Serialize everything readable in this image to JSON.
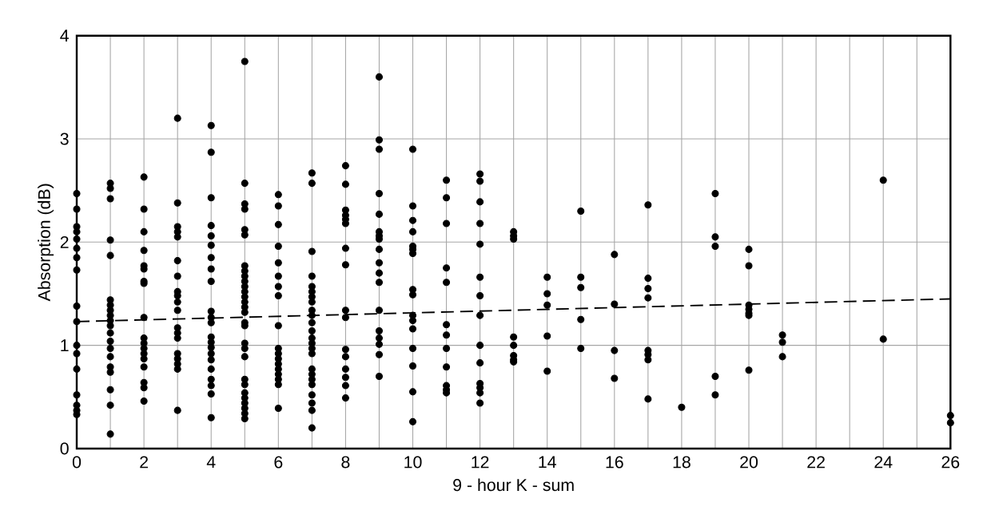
{
  "chart_data": {
    "type": "scatter",
    "xlabel": "9 - hour K - sum",
    "ylabel": "Absorption (dB)",
    "xlim": [
      0,
      26
    ],
    "ylim": [
      0,
      4
    ],
    "xticks": [
      0,
      {
        "value": 1,
        "label": null
      },
      2,
      {
        "value": 3,
        "label": null
      },
      4,
      {
        "value": 5,
        "label": null
      },
      6,
      {
        "value": 7,
        "label": null
      },
      8,
      {
        "value": 9,
        "label": null
      },
      10,
      {
        "value": 11,
        "label": null
      },
      12,
      {
        "value": 13,
        "label": null
      },
      14,
      {
        "value": 15,
        "label": null
      },
      16,
      {
        "value": 17,
        "label": null
      },
      18,
      {
        "value": 19,
        "label": null
      },
      20,
      {
        "value": 21,
        "label": null
      },
      22,
      {
        "value": 23,
        "label": null
      },
      24,
      {
        "value": 25,
        "label": null
      },
      26
    ],
    "yticks": [
      0,
      1,
      2,
      3,
      4
    ],
    "grid": true,
    "marker": "circle",
    "series": [
      {
        "color": "#000000",
        "x": [
          0,
          0,
          0,
          0,
          0,
          0,
          0,
          0,
          0,
          0,
          0,
          0,
          0,
          0,
          0,
          0,
          0
        ],
        "values": [
          2.47,
          2.32,
          2.15,
          2.1,
          2.03,
          1.94,
          1.85,
          1.73,
          1.38,
          1.23,
          1.0,
          0.92,
          0.77,
          0.52,
          0.42,
          0.37,
          0.33
        ]
      },
      {
        "color": "#000000",
        "x": [
          1,
          1,
          1,
          1,
          1,
          1,
          1,
          1,
          1,
          1,
          1,
          1,
          1,
          1,
          1,
          1,
          1,
          1,
          1,
          1
        ],
        "values": [
          2.57,
          2.52,
          2.42,
          2.02,
          1.87,
          1.44,
          1.39,
          1.34,
          1.29,
          1.24,
          1.19,
          1.12,
          1.04,
          0.97,
          0.89,
          0.79,
          0.74,
          0.57,
          0.42,
          0.14
        ]
      },
      {
        "color": "#000000",
        "x": [
          2,
          2,
          2,
          2,
          2,
          2,
          2,
          2,
          2,
          2,
          2,
          2,
          2,
          2,
          2,
          2,
          2,
          2
        ],
        "values": [
          2.63,
          2.32,
          2.1,
          1.92,
          1.77,
          1.74,
          1.62,
          1.6,
          1.27,
          1.07,
          1.02,
          0.97,
          0.92,
          0.87,
          0.79,
          0.64,
          0.59,
          0.46
        ]
      },
      {
        "color": "#000000",
        "x": [
          3,
          3,
          3,
          3,
          3,
          3,
          3,
          3,
          3,
          3,
          3,
          3,
          3,
          3,
          3,
          3,
          3,
          3,
          3
        ],
        "values": [
          3.2,
          2.38,
          2.15,
          2.1,
          2.05,
          1.82,
          1.67,
          1.52,
          1.48,
          1.42,
          1.34,
          1.17,
          1.12,
          1.07,
          0.92,
          0.87,
          0.82,
          0.77,
          0.37
        ]
      },
      {
        "color": "#000000",
        "x": [
          4,
          4,
          4,
          4,
          4,
          4,
          4,
          4,
          4,
          4,
          4,
          4,
          4,
          4,
          4,
          4,
          4,
          4,
          4,
          4,
          4,
          4
        ],
        "values": [
          3.13,
          2.87,
          2.43,
          2.16,
          2.06,
          1.97,
          1.85,
          1.74,
          1.62,
          1.33,
          1.27,
          1.22,
          1.08,
          1.03,
          0.98,
          0.92,
          0.86,
          0.77,
          0.67,
          0.61,
          0.53,
          0.3
        ]
      },
      {
        "color": "#000000",
        "x": [
          5,
          5,
          5,
          5,
          5,
          5,
          5,
          5,
          5,
          5,
          5,
          5,
          5,
          5,
          5,
          5,
          5,
          5,
          5,
          5,
          5,
          5,
          5,
          5,
          5,
          5,
          5,
          5,
          5
        ],
        "values": [
          3.75,
          2.57,
          2.37,
          2.32,
          2.12,
          2.07,
          1.77,
          1.72,
          1.67,
          1.62,
          1.57,
          1.52,
          1.47,
          1.42,
          1.37,
          1.32,
          1.22,
          1.19,
          1.02,
          0.97,
          0.89,
          0.67,
          0.62,
          0.54,
          0.49,
          0.44,
          0.39,
          0.34,
          0.29
        ]
      },
      {
        "color": "#000000",
        "x": [
          6,
          6,
          6,
          6,
          6,
          6,
          6,
          6,
          6,
          6,
          6,
          6,
          6,
          6,
          6,
          6,
          6,
          6
        ],
        "values": [
          2.46,
          2.35,
          2.17,
          1.96,
          1.8,
          1.67,
          1.57,
          1.48,
          1.19,
          0.97,
          0.92,
          0.87,
          0.82,
          0.77,
          0.72,
          0.67,
          0.62,
          0.39
        ]
      },
      {
        "color": "#000000",
        "x": [
          7,
          7,
          7,
          7,
          7,
          7,
          7,
          7,
          7,
          7,
          7,
          7,
          7,
          7,
          7,
          7,
          7,
          7,
          7,
          7,
          7,
          7,
          7,
          7
        ],
        "values": [
          2.67,
          2.57,
          1.91,
          1.67,
          1.57,
          1.52,
          1.47,
          1.42,
          1.34,
          1.29,
          1.22,
          1.14,
          1.07,
          1.02,
          0.97,
          0.92,
          0.77,
          0.72,
          0.67,
          0.62,
          0.52,
          0.44,
          0.37,
          0.2
        ]
      },
      {
        "color": "#000000",
        "x": [
          8,
          8,
          8,
          8,
          8,
          8,
          8,
          8,
          8,
          8,
          8,
          8,
          8,
          8,
          8,
          8
        ],
        "values": [
          2.74,
          2.56,
          2.31,
          2.26,
          2.22,
          2.18,
          1.94,
          1.78,
          1.34,
          1.27,
          0.96,
          0.89,
          0.77,
          0.69,
          0.61,
          0.49
        ]
      },
      {
        "color": "#000000",
        "x": [
          9,
          9,
          9,
          9,
          9,
          9,
          9,
          9,
          9,
          9,
          9,
          9,
          9,
          9,
          9,
          9,
          9,
          9
        ],
        "values": [
          3.6,
          2.99,
          2.9,
          2.47,
          2.27,
          2.1,
          2.06,
          2.03,
          1.93,
          1.8,
          1.7,
          1.61,
          1.34,
          1.14,
          1.07,
          1.01,
          0.91,
          0.7
        ]
      },
      {
        "color": "#000000",
        "x": [
          10,
          10,
          10,
          10,
          10,
          10,
          10,
          10,
          10,
          10,
          10,
          10,
          10,
          10,
          10,
          10
        ],
        "values": [
          2.9,
          2.35,
          2.21,
          2.1,
          1.96,
          1.93,
          1.89,
          1.54,
          1.49,
          1.29,
          1.24,
          1.16,
          0.97,
          0.8,
          0.55,
          0.26
        ]
      },
      {
        "color": "#000000",
        "x": [
          11,
          11,
          11,
          11,
          11,
          11,
          11,
          11,
          11,
          11,
          11,
          11
        ],
        "values": [
          2.6,
          2.43,
          2.18,
          1.75,
          1.61,
          1.2,
          1.1,
          0.97,
          0.79,
          0.61,
          0.57,
          0.54
        ]
      },
      {
        "color": "#000000",
        "x": [
          12,
          12,
          12,
          12,
          12,
          12,
          12,
          12,
          12,
          12,
          12,
          12,
          12,
          12
        ],
        "values": [
          2.66,
          2.59,
          2.39,
          2.18,
          1.98,
          1.66,
          1.48,
          1.29,
          1.0,
          0.83,
          0.63,
          0.59,
          0.54,
          0.44
        ]
      },
      {
        "color": "#000000",
        "x": [
          13,
          13,
          13,
          13,
          13,
          13,
          13,
          13
        ],
        "values": [
          2.1,
          2.06,
          2.03,
          1.08,
          1.0,
          0.9,
          0.86,
          0.84
        ]
      },
      {
        "color": "#000000",
        "x": [
          14,
          14,
          14,
          14,
          14
        ],
        "values": [
          1.66,
          1.5,
          1.39,
          1.09,
          0.75
        ]
      },
      {
        "color": "#000000",
        "x": [
          15,
          15,
          15,
          15,
          15
        ],
        "values": [
          2.3,
          1.66,
          1.56,
          1.25,
          0.97
        ]
      },
      {
        "color": "#000000",
        "x": [
          16,
          16,
          16,
          16
        ],
        "values": [
          1.88,
          1.4,
          0.95,
          0.68
        ]
      },
      {
        "color": "#000000",
        "x": [
          17,
          17,
          17,
          17,
          17,
          17,
          17,
          17
        ],
        "values": [
          2.36,
          1.65,
          1.55,
          1.46,
          0.95,
          0.91,
          0.86,
          0.48
        ]
      },
      {
        "color": "#000000",
        "x": [
          18
        ],
        "values": [
          0.4
        ]
      },
      {
        "color": "#000000",
        "x": [
          19,
          19,
          19,
          19,
          19
        ],
        "values": [
          2.47,
          2.05,
          1.96,
          0.7,
          0.52
        ]
      },
      {
        "color": "#000000",
        "x": [
          20,
          20,
          20,
          20,
          20,
          20,
          20
        ],
        "values": [
          1.93,
          1.77,
          1.39,
          1.35,
          1.31,
          1.29,
          0.76
        ]
      },
      {
        "color": "#000000",
        "x": [
          21,
          21,
          21
        ],
        "values": [
          1.1,
          1.03,
          0.89
        ]
      },
      {
        "color": "#000000",
        "x": [
          24,
          24
        ],
        "values": [
          2.6,
          1.06
        ]
      },
      {
        "color": "#000000",
        "x": [
          26,
          26
        ],
        "values": [
          0.32,
          0.25
        ]
      },
      {
        "type": "line",
        "color": "#000000",
        "line_style": "dashed",
        "marker": "none",
        "x": [
          0,
          26
        ],
        "values": [
          1.23,
          1.45
        ]
      }
    ]
  }
}
